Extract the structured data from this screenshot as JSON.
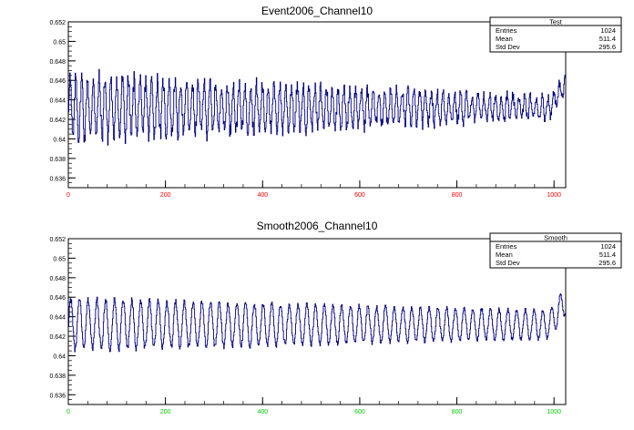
{
  "chart_data": [
    {
      "type": "line",
      "title": "Event2006_Channel10",
      "xlim": [
        0,
        1024
      ],
      "ylim": [
        0.635,
        0.652
      ],
      "xticks": [
        0,
        200,
        400,
        600,
        800,
        1000
      ],
      "yticks": [
        0.636,
        0.638,
        0.64,
        0.642,
        0.644,
        0.646,
        0.648,
        0.65,
        0.652
      ],
      "x_tick_color": "#ff0000",
      "line_color": "#000080",
      "baseline": 0.6432,
      "early_amplitude": 0.0032,
      "late_amplitude": 0.001,
      "period": 12,
      "noise": 0.0016,
      "stats": {
        "title": "Test",
        "rows": [
          {
            "label": "Entries",
            "value": "1024"
          },
          {
            "label": "Mean",
            "value": "511.4"
          },
          {
            "label": "Std Dev",
            "value": "295.6"
          }
        ]
      }
    },
    {
      "type": "line",
      "title": "Smooth2006_Channel10",
      "xlim": [
        0,
        1024
      ],
      "ylim": [
        0.635,
        0.652
      ],
      "xticks": [
        0,
        200,
        400,
        600,
        800,
        1000
      ],
      "yticks": [
        0.636,
        0.638,
        0.64,
        0.642,
        0.644,
        0.646,
        0.648,
        0.65,
        0.652
      ],
      "x_tick_color": "#00cc00",
      "line_color": "#000080",
      "baseline": 0.6432,
      "early_amplitude": 0.0026,
      "late_amplitude": 0.0014,
      "period": 18,
      "noise": 0.0006,
      "stats": {
        "title": "Smooth",
        "rows": [
          {
            "label": "Entries",
            "value": "1024"
          },
          {
            "label": "Mean",
            "value": "511.4"
          },
          {
            "label": "Std Dev",
            "value": "295.6"
          }
        ]
      }
    }
  ]
}
